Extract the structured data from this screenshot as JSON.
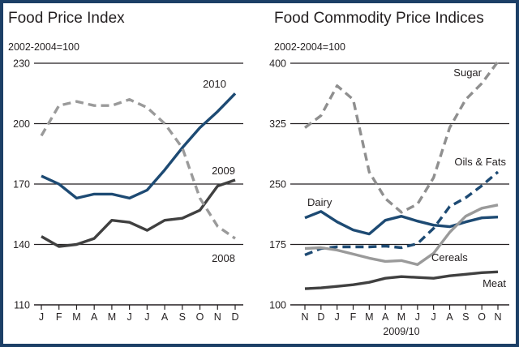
{
  "chart_data": [
    {
      "type": "line",
      "title": "Food Price Index",
      "subtitle": "2002-2004=100",
      "categories": [
        "J",
        "F",
        "M",
        "A",
        "M",
        "J",
        "J",
        "A",
        "S",
        "O",
        "N",
        "D"
      ],
      "yticks": [
        110,
        140,
        170,
        200,
        230
      ],
      "ylim": [
        110,
        230
      ],
      "grid": true,
      "series": [
        {
          "name": "2010",
          "color": "#1d4a73",
          "dash": "solid",
          "values": [
            174,
            170,
            163,
            165,
            165,
            163,
            167,
            177,
            188,
            198,
            206,
            215
          ]
        },
        {
          "name": "2009",
          "color": "#404040",
          "dash": "solid",
          "values": [
            144,
            139,
            140,
            143,
            152,
            151,
            147,
            152,
            153,
            157,
            169,
            172
          ]
        },
        {
          "name": "2008",
          "color": "#9a9a9a",
          "dash": "dashed",
          "values": [
            194,
            209,
            211,
            209,
            209,
            212,
            208,
            200,
            188,
            163,
            149,
            143
          ]
        }
      ]
    },
    {
      "type": "line",
      "title": "Food Commodity Price Indices",
      "subtitle": "2002-2004=100",
      "categories": [
        "N",
        "D",
        "J",
        "F",
        "M",
        "A",
        "M",
        "J",
        "J",
        "A",
        "S",
        "O",
        "N"
      ],
      "xlabel": "2009/10",
      "yticks": [
        100,
        175,
        250,
        325,
        400
      ],
      "ylim": [
        100,
        400
      ],
      "grid": true,
      "series": [
        {
          "name": "Sugar",
          "color": "#8f8f8f",
          "dash": "dashed",
          "values": [
            320,
            335,
            372,
            355,
            265,
            232,
            215,
            225,
            258,
            320,
            355,
            375,
            402
          ]
        },
        {
          "name": "Oils & Fats",
          "color": "#1d4a73",
          "dash": "dashed",
          "values": [
            162,
            170,
            172,
            172,
            172,
            173,
            171,
            176,
            195,
            222,
            233,
            248,
            265
          ]
        },
        {
          "name": "Dairy",
          "color": "#1d4a73",
          "dash": "solid",
          "values": [
            208,
            216,
            203,
            193,
            188,
            205,
            210,
            204,
            199,
            197,
            203,
            208,
            209
          ]
        },
        {
          "name": "Cereals",
          "color": "#9a9a9a",
          "dash": "solid",
          "values": [
            170,
            171,
            168,
            163,
            158,
            154,
            155,
            150,
            164,
            190,
            210,
            220,
            224
          ]
        },
        {
          "name": "Meat",
          "color": "#404040",
          "dash": "solid",
          "values": [
            120,
            121,
            123,
            125,
            128,
            133,
            135,
            134,
            133,
            136,
            138,
            140,
            141
          ]
        }
      ]
    }
  ]
}
